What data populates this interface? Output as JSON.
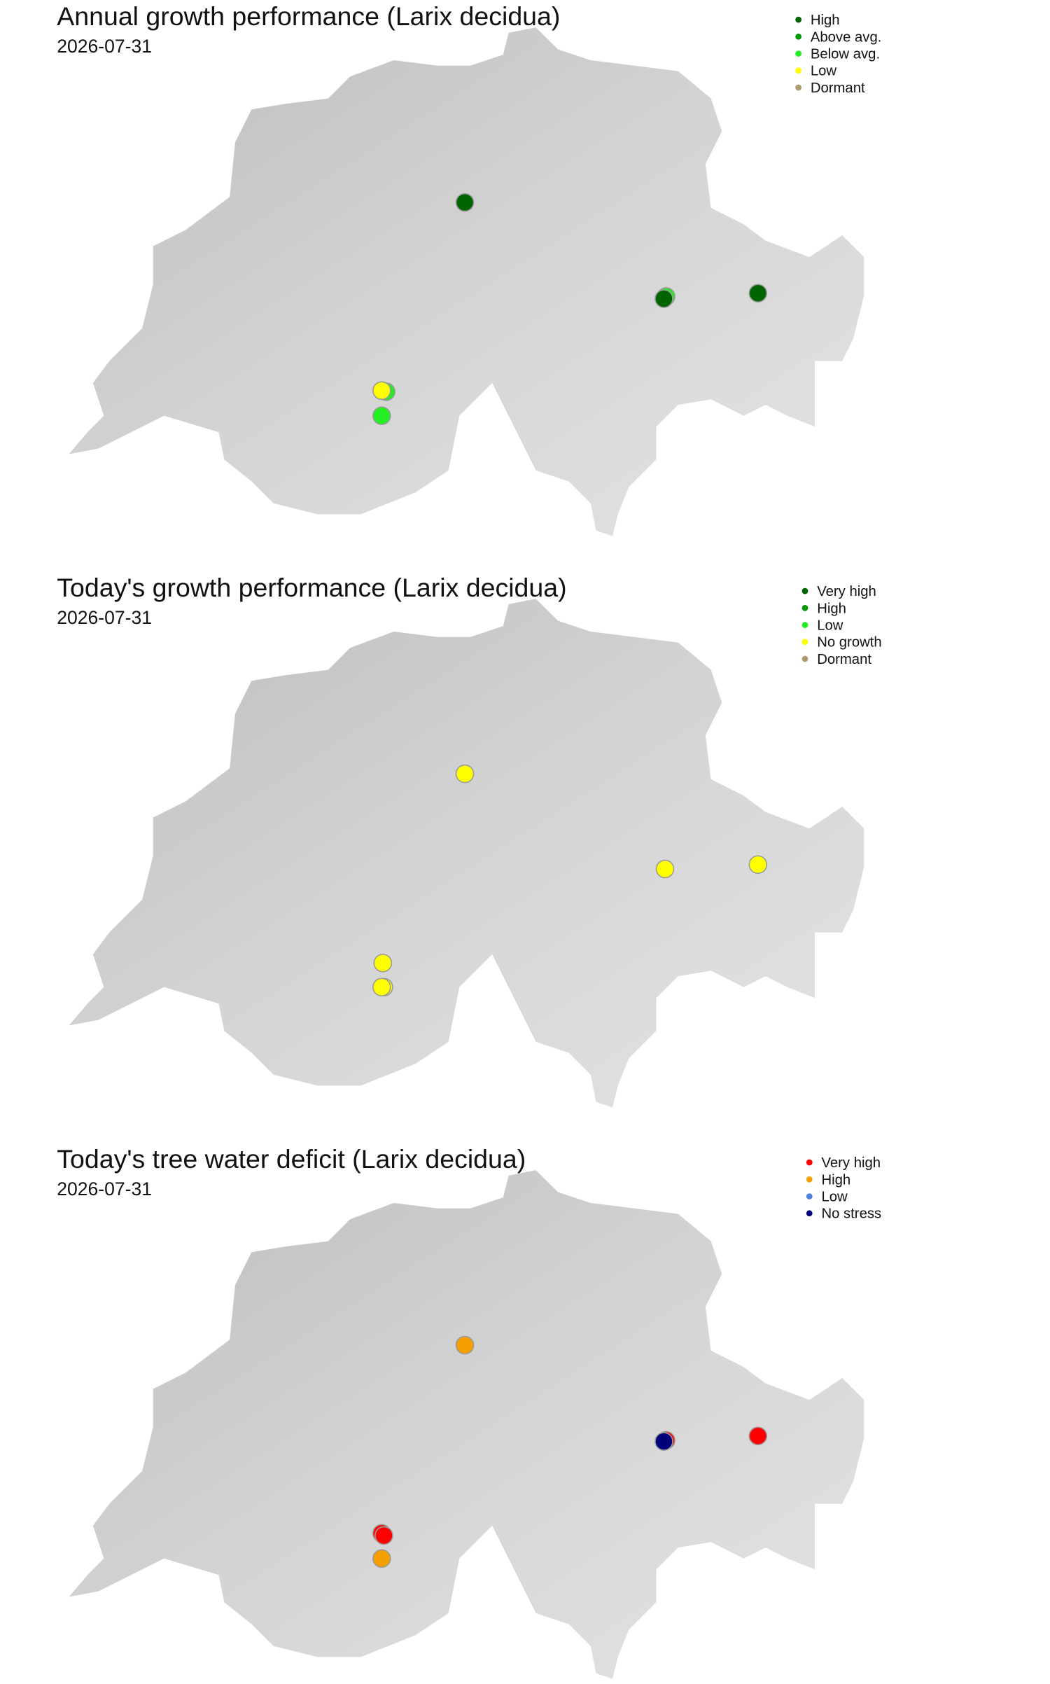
{
  "panels": [
    {
      "title": "Annual growth performance (Larix decidua)",
      "date": "2026-07-31",
      "legend": [
        {
          "name": "High",
          "color": "#006400"
        },
        {
          "name": "Above avg.",
          "color": "#009900"
        },
        {
          "name": "Below avg.",
          "color": "#22ee22"
        },
        {
          "name": "Low",
          "color": "#ffff00"
        },
        {
          "name": "Dormant",
          "color": "#b09a70"
        }
      ]
    },
    {
      "title": "Today's growth performance (Larix decidua)",
      "date": "2026-07-31",
      "legend": [
        {
          "name": "Very high",
          "color": "#006400"
        },
        {
          "name": "High",
          "color": "#009900"
        },
        {
          "name": "Low",
          "color": "#22ee22"
        },
        {
          "name": "No growth",
          "color": "#ffff00"
        },
        {
          "name": "Dormant",
          "color": "#b09a70"
        }
      ]
    },
    {
      "title": "Today's tree water deficit (Larix decidua)",
      "date": "2026-07-31",
      "legend": [
        {
          "name": "Very high",
          "color": "#ff0000"
        },
        {
          "name": "High",
          "color": "#f5a000"
        },
        {
          "name": "Low",
          "color": "#4f7fe0"
        },
        {
          "name": "No stress",
          "color": "#00007a"
        }
      ]
    }
  ]
}
